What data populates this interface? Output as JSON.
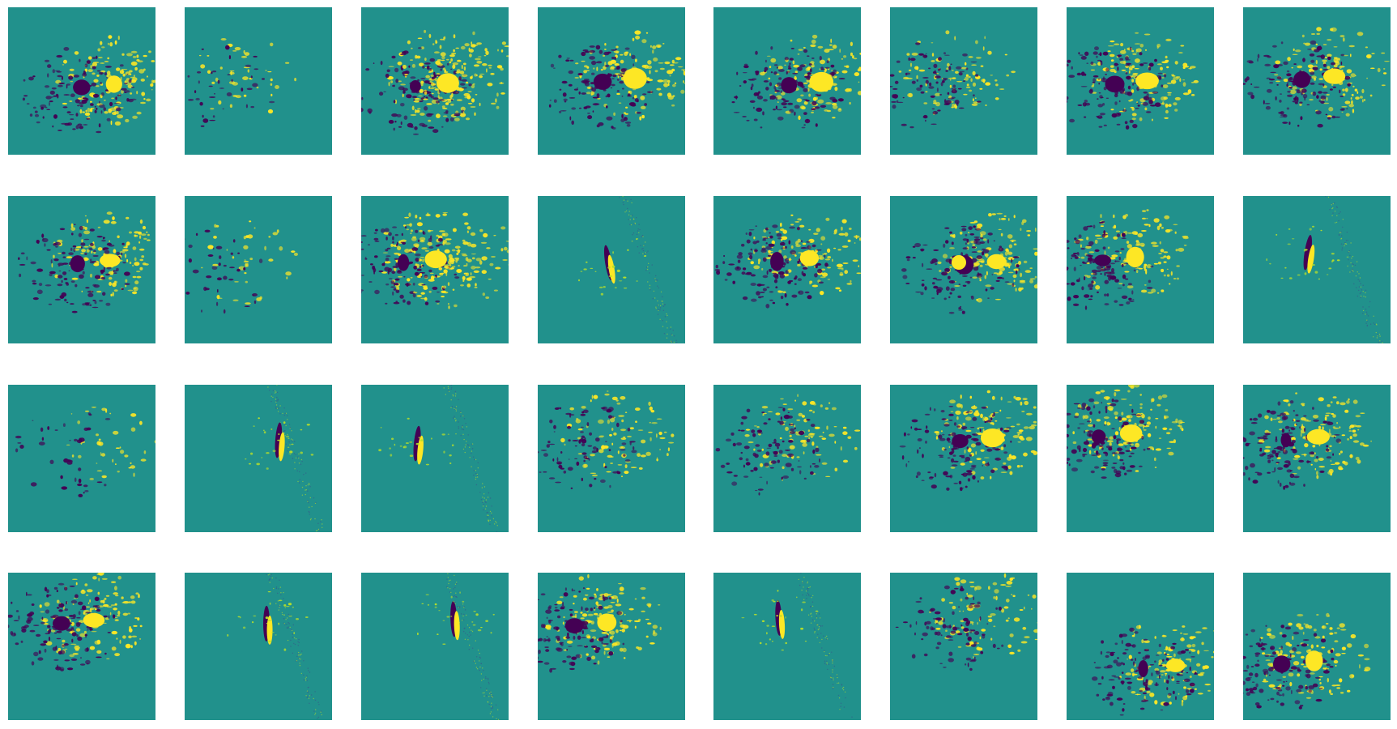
{
  "figure": {
    "rows": 4,
    "columns": 8,
    "colormap": "viridis",
    "colors": {
      "background": "#21918c",
      "positive": "#fde725",
      "positive_soft": "#b5de2b",
      "negative": "#440154",
      "negative_soft": "#3b528b"
    },
    "panels": [
      {
        "id": "r1c1",
        "pattern": "bipole-plage"
      },
      {
        "id": "r1c2",
        "pattern": "weak-network"
      },
      {
        "id": "r1c3",
        "pattern": "positive-plage"
      },
      {
        "id": "r1c4",
        "pattern": "bipole-plage"
      },
      {
        "id": "r1c5",
        "pattern": "bipole-plage"
      },
      {
        "id": "r1c6",
        "pattern": "mixed-network"
      },
      {
        "id": "r1c7",
        "pattern": "bipole-plage"
      },
      {
        "id": "r1c8",
        "pattern": "bipole-plage"
      },
      {
        "id": "r2c1",
        "pattern": "bipole-plage"
      },
      {
        "id": "r2c2",
        "pattern": "weak-network"
      },
      {
        "id": "r2c3",
        "pattern": "positive-plage"
      },
      {
        "id": "r2c4",
        "pattern": "limb-streak"
      },
      {
        "id": "r2c5",
        "pattern": "bipole-plage"
      },
      {
        "id": "r2c6",
        "pattern": "single-spot"
      },
      {
        "id": "r2c7",
        "pattern": "bipole-plage"
      },
      {
        "id": "r2c8",
        "pattern": "limb-streak"
      },
      {
        "id": "r3c1",
        "pattern": "weak-network"
      },
      {
        "id": "r3c2",
        "pattern": "limb-streak"
      },
      {
        "id": "r3c3",
        "pattern": "limb-streak"
      },
      {
        "id": "r3c4",
        "pattern": "mixed-network"
      },
      {
        "id": "r3c5",
        "pattern": "mixed-network"
      },
      {
        "id": "r3c6",
        "pattern": "bipole-plage"
      },
      {
        "id": "r3c7",
        "pattern": "bipole-plage"
      },
      {
        "id": "r3c8",
        "pattern": "compact-bipole"
      },
      {
        "id": "r4c1",
        "pattern": "bipole-plage"
      },
      {
        "id": "r4c2",
        "pattern": "limb-streak"
      },
      {
        "id": "r4c3",
        "pattern": "limb-streak"
      },
      {
        "id": "r4c4",
        "pattern": "bipole-plage"
      },
      {
        "id": "r4c5",
        "pattern": "limb-streak"
      },
      {
        "id": "r4c6",
        "pattern": "mixed-network"
      },
      {
        "id": "r4c7",
        "pattern": "compact-bipole"
      },
      {
        "id": "r4c8",
        "pattern": "bipole-plage"
      }
    ]
  }
}
